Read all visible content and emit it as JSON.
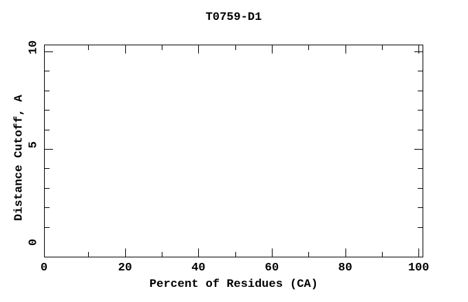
{
  "page": {
    "background_color": "#ffffff",
    "foreground_color": "#000000"
  },
  "chart_data": {
    "type": "line",
    "title": "T0759-D1",
    "xlabel": "Percent of Residues (CA)",
    "ylabel": "Distance Cutoff, A",
    "xlim": [
      -2.06,
      101.26
    ],
    "ylim": [
      -0.56,
      10.35
    ],
    "grid": false,
    "legend": null,
    "series": [],
    "x_axis": {
      "tick_labels": [
        {
          "value": 0,
          "label": "0"
        },
        {
          "value": 20,
          "label": "20"
        },
        {
          "value": 40,
          "label": "40"
        },
        {
          "value": 60,
          "label": "60"
        },
        {
          "value": 80,
          "label": "80"
        },
        {
          "value": 100,
          "label": "100"
        }
      ],
      "major_ticks_drawn": [
        20,
        40,
        60,
        80,
        100
      ],
      "minor_ticks_drawn": [
        10,
        30,
        50,
        70,
        90
      ],
      "ticks_mirrored_on_top": true,
      "tick_direction": "in"
    },
    "y_axis": {
      "tick_labels": [
        {
          "value": 0,
          "label": "0"
        },
        {
          "value": 5,
          "label": "5"
        },
        {
          "value": 10,
          "label": "10"
        }
      ],
      "major_ticks_drawn": [
        5,
        10
      ],
      "minor_ticks_drawn": [
        1,
        2,
        3,
        4,
        6,
        7,
        8,
        9
      ],
      "ticks_mirrored_on_right": true,
      "tick_direction": "in"
    }
  }
}
